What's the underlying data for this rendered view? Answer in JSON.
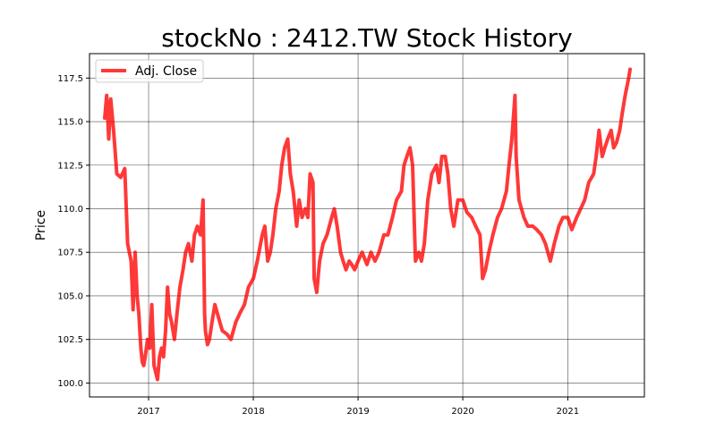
{
  "chart_data": {
    "type": "line",
    "title": "stockNo : 2412.TW Stock History",
    "xlabel": "",
    "ylabel": "Price",
    "xlim": [
      "2016-06-09",
      "2021-09-25"
    ],
    "ylim": [
      99.2,
      118.9
    ],
    "x_ticks": [
      "2017-01-01",
      "2018-01-01",
      "2019-01-01",
      "2020-01-01",
      "2021-01-01"
    ],
    "x_tick_labels": [
      "2017",
      "2018",
      "2019",
      "2020",
      "2021"
    ],
    "y_ticks": [
      100.0,
      102.5,
      105.0,
      107.5,
      110.0,
      112.5,
      115.0,
      117.5
    ],
    "y_tick_labels": [
      "100.0",
      "102.5",
      "105.0",
      "107.5",
      "110.0",
      "112.5",
      "115.0",
      "117.5"
    ],
    "grid": true,
    "legend_position": "top-left",
    "series": [
      {
        "name": "Adj. Close",
        "color": "#ff0000",
        "x": [
          "2016-08-01",
          "2016-08-08",
          "2016-08-15",
          "2016-08-22",
          "2016-09-01",
          "2016-09-12",
          "2016-09-26",
          "2016-10-10",
          "2016-10-20",
          "2016-11-01",
          "2016-11-08",
          "2016-11-15",
          "2016-11-22",
          "2016-11-28",
          "2016-12-05",
          "2016-12-10",
          "2016-12-15",
          "2016-12-20",
          "2016-12-28",
          "2017-01-05",
          "2017-01-12",
          "2017-01-20",
          "2017-02-01",
          "2017-02-08",
          "2017-02-15",
          "2017-02-22",
          "2017-03-01",
          "2017-03-08",
          "2017-03-15",
          "2017-03-22",
          "2017-04-01",
          "2017-04-10",
          "2017-04-20",
          "2017-05-01",
          "2017-05-10",
          "2017-05-20",
          "2017-06-01",
          "2017-06-10",
          "2017-06-20",
          "2017-07-01",
          "2017-07-10",
          "2017-07-15",
          "2017-07-18",
          "2017-07-25",
          "2017-08-01",
          "2017-08-10",
          "2017-08-20",
          "2017-09-01",
          "2017-09-15",
          "2017-10-01",
          "2017-10-15",
          "2017-11-01",
          "2017-11-15",
          "2017-12-01",
          "2017-12-15",
          "2018-01-01",
          "2018-01-15",
          "2018-02-01",
          "2018-02-10",
          "2018-02-20",
          "2018-03-01",
          "2018-03-10",
          "2018-03-20",
          "2018-04-01",
          "2018-04-10",
          "2018-04-20",
          "2018-05-01",
          "2018-05-10",
          "2018-05-20",
          "2018-06-01",
          "2018-06-10",
          "2018-06-20",
          "2018-07-01",
          "2018-07-10",
          "2018-07-18",
          "2018-07-28",
          "2018-08-01",
          "2018-08-10",
          "2018-08-20",
          "2018-09-01",
          "2018-09-15",
          "2018-10-01",
          "2018-10-10",
          "2018-10-20",
          "2018-11-01",
          "2018-11-10",
          "2018-11-20",
          "2018-12-01",
          "2018-12-10",
          "2018-12-20",
          "2019-01-01",
          "2019-01-15",
          "2019-02-01",
          "2019-02-15",
          "2019-03-01",
          "2019-03-15",
          "2019-04-01",
          "2019-04-15",
          "2019-05-01",
          "2019-05-15",
          "2019-06-01",
          "2019-06-10",
          "2019-06-20",
          "2019-07-01",
          "2019-07-10",
          "2019-07-20",
          "2019-08-01",
          "2019-08-10",
          "2019-08-20",
          "2019-09-01",
          "2019-09-15",
          "2019-10-01",
          "2019-10-10",
          "2019-10-20",
          "2019-11-01",
          "2019-11-10",
          "2019-11-20",
          "2019-12-01",
          "2019-12-15",
          "2020-01-01",
          "2020-01-15",
          "2020-02-01",
          "2020-02-15",
          "2020-03-01",
          "2020-03-10",
          "2020-03-20",
          "2020-04-01",
          "2020-04-15",
          "2020-05-01",
          "2020-05-15",
          "2020-06-01",
          "2020-06-10",
          "2020-06-20",
          "2020-07-01",
          "2020-07-05",
          "2020-07-15",
          "2020-08-01",
          "2020-08-15",
          "2020-09-01",
          "2020-09-15",
          "2020-10-01",
          "2020-10-15",
          "2020-11-01",
          "2020-11-15",
          "2020-12-01",
          "2020-12-15",
          "2021-01-01",
          "2021-01-15",
          "2021-02-01",
          "2021-02-15",
          "2021-03-01",
          "2021-03-15",
          "2021-04-01",
          "2021-04-10",
          "2021-04-20",
          "2021-05-01",
          "2021-05-10",
          "2021-05-20",
          "2021-06-01",
          "2021-06-10",
          "2021-06-20",
          "2021-07-01",
          "2021-07-10",
          "2021-07-20",
          "2021-08-01",
          "2021-08-06"
        ],
        "y": [
          115.2,
          116.5,
          114.0,
          116.3,
          114.5,
          112.0,
          111.8,
          112.3,
          108.0,
          107.0,
          104.2,
          107.5,
          105.0,
          104.0,
          102.0,
          101.2,
          101.0,
          101.5,
          102.5,
          102.0,
          104.5,
          101.0,
          100.2,
          101.5,
          102.0,
          101.5,
          103.0,
          105.5,
          104.0,
          103.5,
          102.5,
          104.0,
          105.5,
          106.5,
          107.5,
          108.0,
          107.0,
          108.5,
          109.0,
          108.5,
          110.5,
          104.0,
          103.0,
          102.2,
          102.5,
          103.5,
          104.5,
          103.8,
          103.0,
          102.8,
          102.5,
          103.5,
          104.0,
          104.5,
          105.5,
          106.0,
          107.0,
          108.5,
          109.0,
          107.0,
          107.5,
          108.5,
          110.0,
          111.0,
          112.5,
          113.5,
          114.0,
          112.0,
          111.0,
          109.0,
          110.5,
          109.5,
          110.0,
          109.5,
          112.0,
          111.5,
          106.0,
          105.2,
          107.0,
          108.0,
          108.5,
          109.5,
          110.0,
          109.0,
          107.5,
          107.0,
          106.5,
          107.0,
          106.8,
          106.5,
          107.0,
          107.5,
          106.8,
          107.5,
          107.0,
          107.5,
          108.5,
          108.5,
          109.5,
          110.5,
          111.0,
          112.5,
          113.0,
          113.5,
          112.5,
          107.0,
          107.5,
          107.0,
          108.0,
          110.5,
          112.0,
          112.5,
          111.5,
          113.0,
          113.0,
          112.0,
          110.0,
          109.0,
          110.5,
          110.5,
          109.8,
          109.5,
          109.0,
          108.5,
          106.0,
          106.5,
          107.5,
          108.5,
          109.5,
          110.0,
          111.0,
          112.5,
          114.0,
          116.5,
          113.0,
          110.5,
          109.5,
          109.0,
          109.0,
          108.8,
          108.5,
          108.0,
          107.0,
          108.0,
          109.0,
          109.5,
          109.5,
          108.8,
          109.5,
          110.0,
          110.5,
          111.5,
          112.0,
          113.0,
          114.5,
          113.0,
          113.5,
          114.0,
          114.5,
          113.5,
          113.8,
          114.5,
          115.5,
          116.5,
          117.5,
          118.0
        ]
      }
    ]
  }
}
